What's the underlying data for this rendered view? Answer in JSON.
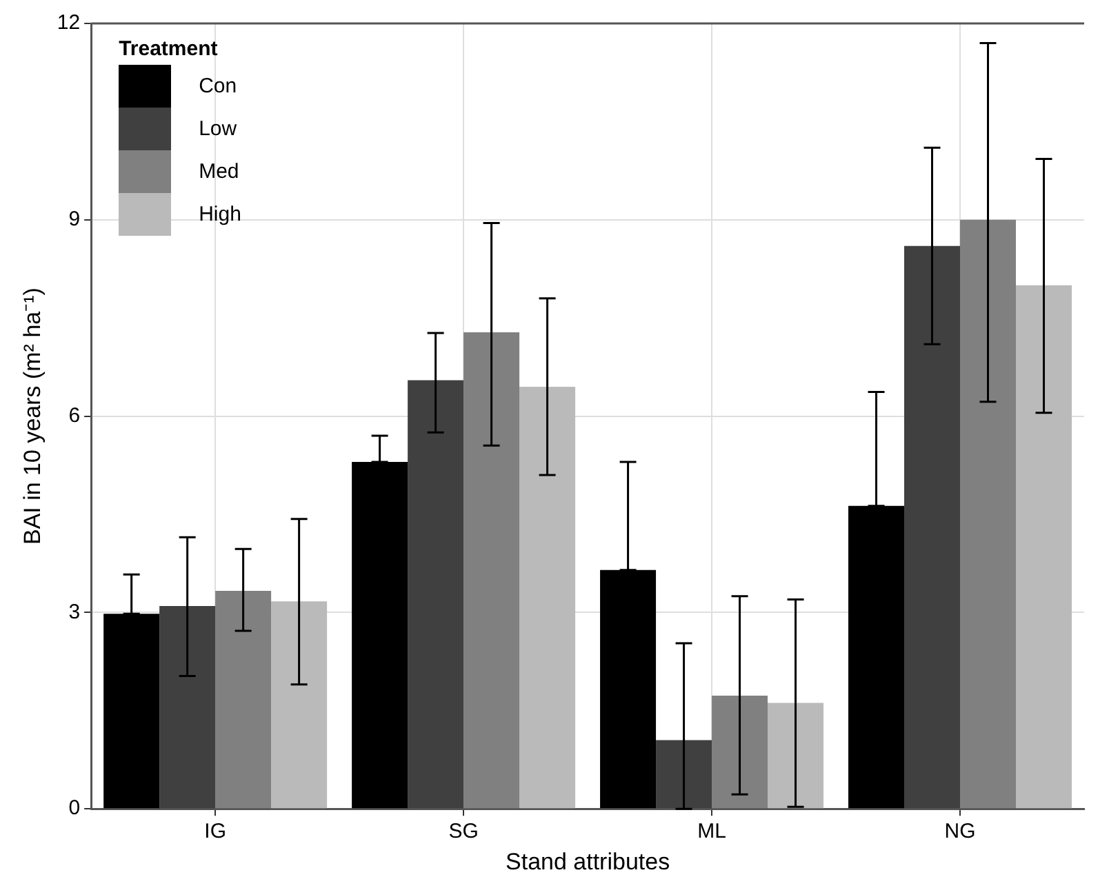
{
  "chart_data": {
    "type": "bar",
    "xlabel": "Stand attributes",
    "ylabel": "BAI in 10 years (m² ha⁻¹)",
    "legend_title": "Treatment",
    "categories": [
      "IG",
      "SG",
      "ML",
      "NG"
    ],
    "series": [
      {
        "name": "Con",
        "color": "#000000",
        "values": [
          2.98,
          5.3,
          3.65,
          4.63
        ],
        "errors": [
          [
            2.98,
            3.58
          ],
          [
            5.3,
            5.7
          ],
          [
            3.65,
            5.3
          ],
          [
            4.63,
            6.37
          ]
        ]
      },
      {
        "name": "Low",
        "color": "#404040",
        "values": [
          3.1,
          6.55,
          1.05,
          8.6
        ],
        "errors": [
          [
            2.03,
            4.15
          ],
          [
            5.75,
            7.27
          ],
          [
            0,
            2.53
          ],
          [
            7.1,
            10.1
          ]
        ]
      },
      {
        "name": "Med",
        "color": "#808080",
        "values": [
          3.33,
          7.28,
          1.73,
          9.0
        ],
        "errors": [
          [
            2.72,
            3.97
          ],
          [
            5.55,
            8.95
          ],
          [
            0.22,
            3.25
          ],
          [
            6.22,
            11.7
          ]
        ]
      },
      {
        "name": "High",
        "color": "#bababa",
        "values": [
          3.17,
          6.45,
          1.62,
          8.0
        ],
        "errors": [
          [
            1.9,
            4.43
          ],
          [
            5.1,
            7.8
          ],
          [
            0.03,
            3.2
          ],
          [
            6.05,
            9.93
          ]
        ]
      }
    ],
    "ylim": [
      0,
      12
    ],
    "yticks": [
      0,
      3,
      6,
      9,
      12
    ],
    "grid": true,
    "legend": "top left"
  }
}
